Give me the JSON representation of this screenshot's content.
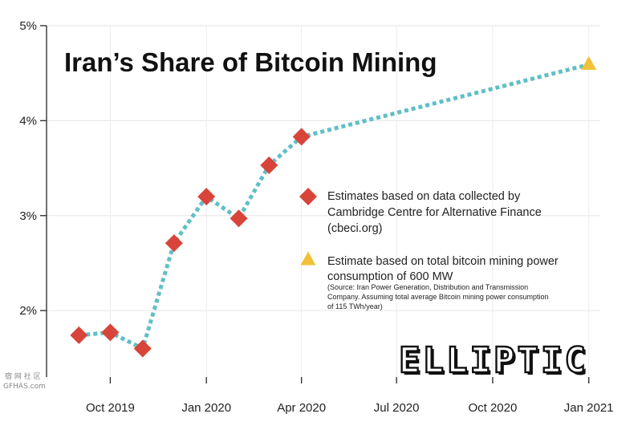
{
  "chart_data": {
    "type": "line",
    "title": "Iran’s Share of Bitcoin Mining",
    "y_ticks": [
      "2%",
      "3%",
      "4%",
      "5%"
    ],
    "y_tick_values": [
      2,
      3,
      4,
      5
    ],
    "ylim": [
      1.3,
      5
    ],
    "x_ticks": [
      "Oct 2019",
      "Jan 2020",
      "Apr 2020",
      "Jul 2020",
      "Oct 2020",
      "Jan 2021"
    ],
    "x_tick_dates": [
      "2019-10-01",
      "2020-01-01",
      "2020-04-01",
      "2020-07-01",
      "2020-10-01",
      "2021-01-01"
    ],
    "xlim": [
      "2019-08-01",
      "2021-01-12"
    ],
    "grid": true,
    "series": [
      {
        "marker": "diamond",
        "color": "#d9443a",
        "points": [
          {
            "x": "2019-09-01",
            "y": 1.74
          },
          {
            "x": "2019-10-01",
            "y": 1.77
          },
          {
            "x": "2019-11-01",
            "y": 1.6
          },
          {
            "x": "2019-12-01",
            "y": 2.71
          },
          {
            "x": "2020-01-01",
            "y": 3.2
          },
          {
            "x": "2020-02-01",
            "y": 2.97
          },
          {
            "x": "2020-03-01",
            "y": 3.53
          },
          {
            "x": "2020-04-01",
            "y": 3.83
          }
        ]
      },
      {
        "marker": "triangle",
        "color": "#f2c13a",
        "points": [
          {
            "x": "2021-01-01",
            "y": 4.59
          }
        ]
      }
    ],
    "line_color": "#5fbfc5",
    "legend": {
      "placement": "center-right",
      "items": [
        {
          "marker": "diamond",
          "color": "#d9443a",
          "lines": [
            "Estimates based on data collected by",
            "Cambridge Centre for Alternative Finance",
            "(cbeci.org)"
          ]
        },
        {
          "marker": "triangle",
          "color": "#f2c13a",
          "lines": [
            "Estimate based on total bitcoin mining power",
            "consumption of 600 MW"
          ],
          "note_lines": [
            "(Source: Iran Power Generation, Distribution and Transmission",
            "Company. Assuming total average Bitcoin mining power consumption",
            "of 115 TWh/year)"
          ]
        }
      ]
    }
  },
  "branding": {
    "logo_text": "ELLIPTIC",
    "watermark_lines": [
      "宿 网 社 区",
      "GFHAS.com"
    ]
  }
}
